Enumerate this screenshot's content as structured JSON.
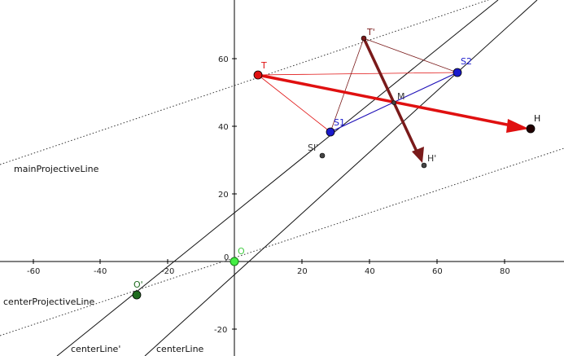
{
  "axes": {
    "x_ticks": [
      "-60",
      "-40",
      "-20",
      "0",
      "20",
      "40",
      "60",
      "80"
    ],
    "y_ticks": [
      "60",
      "40",
      "20",
      "0",
      "-20"
    ]
  },
  "line_labels": {
    "main_projective": "mainProjectiveLine",
    "center_projective": "centerProjectiveLine",
    "center_line_prime": "centerLine'",
    "center_line": "centerLine"
  },
  "points": {
    "T": "T",
    "T_prime": "T'",
    "S1": "S1",
    "S2": "S2",
    "M": "M",
    "H": "H",
    "H_prime": "H'",
    "S1_prime": "SI'",
    "O": "O",
    "O_prime": "O'"
  },
  "colors": {
    "red": "#e01010",
    "dark_red": "#7a1a1a",
    "blue": "#1a1acc",
    "green_light": "#44ee44",
    "green_dark": "#1f6b1f",
    "axis": "#000000"
  }
}
